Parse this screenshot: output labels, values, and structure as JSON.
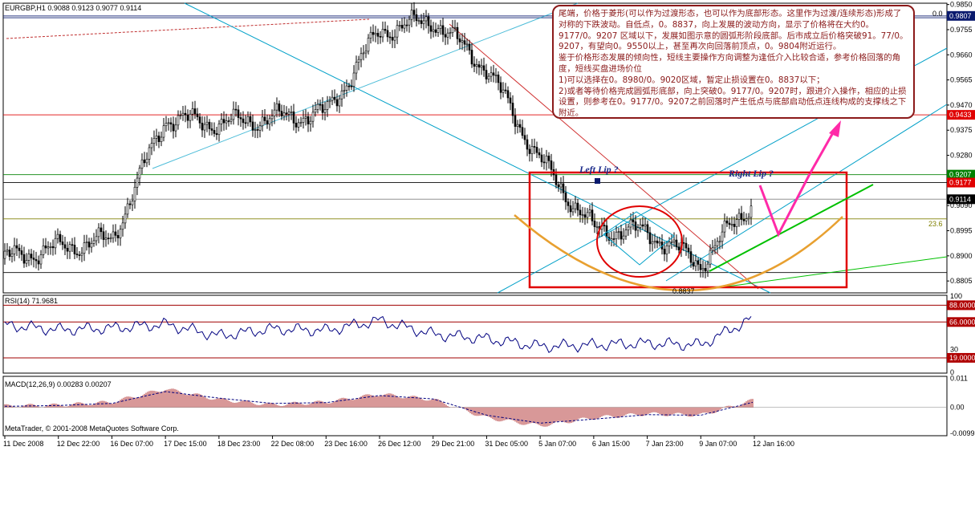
{
  "chart_data": {
    "type": "candlestick",
    "symbol_header": "EURGBP,H1  0.9088 0.9123 0.9077 0.9114",
    "copyright": "MetaTrader, © 2001-2008 MetaQuotes Software Corp.",
    "price_axis": {
      "ylim": [
        0.876,
        0.9855
      ],
      "ticks": [
        "0.9850",
        "0.9755",
        "0.9660",
        "0.9565",
        "0.9470",
        "0.9375",
        "0.9280",
        "0.9185",
        "0.9090",
        "0.8995",
        "0.8900",
        "0.8805"
      ]
    },
    "time_axis": {
      "ticks": [
        "11 Dec 2008",
        "12 Dec 22:00",
        "16 Dec 07:00",
        "17 Dec 15:00",
        "18 Dec 23:00",
        "22 Dec 08:00",
        "23 Dec 16:00",
        "26 Dec 12:00",
        "29 Dec 21:00",
        "31 Dec 05:00",
        "5 Jan 07:00",
        "6 Jan 15:00",
        "7 Jan 23:00",
        "9 Jan 07:00",
        "12 Jan 16:00"
      ]
    },
    "series": [
      {
        "name": "EURGBP,H1",
        "x": [
          "11 Dec 2008",
          "12 Dec 22:00",
          "16 Dec 07:00",
          "17 Dec 15:00",
          "18 Dec 23:00",
          "22 Dec 08:00",
          "23 Dec 16:00",
          "26 Dec 12:00",
          "29 Dec 21:00",
          "31 Dec 05:00",
          "5 Jan 07:00",
          "6 Jan 15:00",
          "7 Jan 23:00",
          "9 Jan 07:00",
          "12 Jan 16:00"
        ],
        "values": [
          0.889,
          0.893,
          0.896,
          0.942,
          0.94,
          0.942,
          0.944,
          0.975,
          0.979,
          0.961,
          0.926,
          0.9,
          0.899,
          0.887,
          0.9114
        ]
      }
    ],
    "price_labels": [
      {
        "value": 0.9807,
        "text": "0.9807",
        "color": "#0a1a6e"
      },
      {
        "value": 0.9433,
        "text": "0.9433",
        "color": "#e00000"
      },
      {
        "value": 0.9207,
        "text": "0.9207",
        "color": "#008000"
      },
      {
        "value": 0.9177,
        "text": "0.9177",
        "color": "#e00000"
      },
      {
        "value": 0.9114,
        "text": "0.9114",
        "color": "#000000"
      }
    ],
    "chart_labels": {
      "fib_top": "0.0",
      "fib_mid": "23.6",
      "low_price": "0.8837",
      "left_lip": "Left Lip  ?",
      "right_lip": "Right Lip  ?"
    },
    "rsi": {
      "label": "RSI(14) 71.9681",
      "levels": [
        {
          "value": 88,
          "text": "88.0000"
        },
        {
          "value": 66,
          "text": "66.0000"
        },
        {
          "value": 19,
          "text": "19.0000"
        }
      ],
      "axis_ticks": [
        "100",
        "30",
        "0"
      ],
      "x": [
        "11 Dec 2008",
        "12 Dec 22:00",
        "16 Dec 07:00",
        "17 Dec 15:00",
        "18 Dec 23:00",
        "22 Dec 08:00",
        "23 Dec 16:00",
        "26 Dec 12:00",
        "29 Dec 21:00",
        "31 Dec 05:00",
        "5 Jan 07:00",
        "6 Jan 15:00",
        "7 Jan 23:00",
        "9 Jan 07:00",
        "12 Jan 16:00"
      ],
      "values": [
        62,
        56,
        58,
        63,
        48,
        57,
        55,
        68,
        50,
        44,
        34,
        36,
        38,
        36,
        71.97
      ],
      "ylim": [
        0,
        100
      ]
    },
    "macd": {
      "label": "MACD(12,26,9) 0.00283 0.00207",
      "axis_ticks": [
        "0.011",
        "0.00",
        "-0.00993"
      ],
      "x": [
        "11 Dec 2008",
        "12 Dec 22:00",
        "16 Dec 07:00",
        "17 Dec 15:00",
        "18 Dec 23:00",
        "22 Dec 08:00",
        "23 Dec 16:00",
        "26 Dec 12:00",
        "29 Dec 21:00",
        "31 Dec 05:00",
        "5 Jan 07:00",
        "6 Jan 15:00",
        "7 Jan 23:00",
        "9 Jan 07:00",
        "12 Jan 16:00"
      ],
      "values": [
        0.0005,
        0.0008,
        0.002,
        0.007,
        0.003,
        0.001,
        0.002,
        0.005,
        0.003,
        -0.004,
        -0.007,
        -0.004,
        -0.0025,
        -0.003,
        0.00283
      ],
      "signal": [
        0.0004,
        0.0007,
        0.0015,
        0.006,
        0.0035,
        0.0015,
        0.0018,
        0.0045,
        0.0032,
        -0.003,
        -0.006,
        -0.0045,
        -0.0028,
        -0.003,
        0.00207
      ],
      "ylim": [
        -0.0105,
        0.0115
      ]
    },
    "colors": {
      "candle": "#000000",
      "channel": "#00a0c8",
      "resistance": "#e00000",
      "support_green": "#00c000",
      "arc": "#e8a030",
      "pattern_box": "#e00000",
      "arrow": "#ff2aa8",
      "rsi_line": "#000080",
      "macd_hist": "#b03030"
    }
  },
  "annotation": {
    "lines": [
      "尾端，价格于菱形(可以作为过渡形态，也可以作为底部形态。这里作为过渡/连续形态)形成了对称的下跌波动。自低点，0。8837，向上发展的波动方向，显示了价格将在大约0。9177/0。9207 区域以下，发展如图示意的圆弧形阶段底部。后市成立后价格突破91。77/0。9207，有望向0。9550以上，甚至再次向回落前顶点，0。9804附近运行。",
      "鉴于价格形态发展的倾向性，短线主要操作方向调整为逢低介入比较合适，参考价格回落的角度，短线买盘进场价位",
      "1)可以选择在0。8980/0。9020区域，暂定止损设置在0。8837以下；",
      "2)或者等待价格完成圆弧形底部，向上突破0。9177/0。9207时，跟进介入操作，相应的止损设置，则参考在0。9177/0。9207之前回落时产生低点与底部启动低点连线构成的支撑线之下附近。"
    ]
  }
}
